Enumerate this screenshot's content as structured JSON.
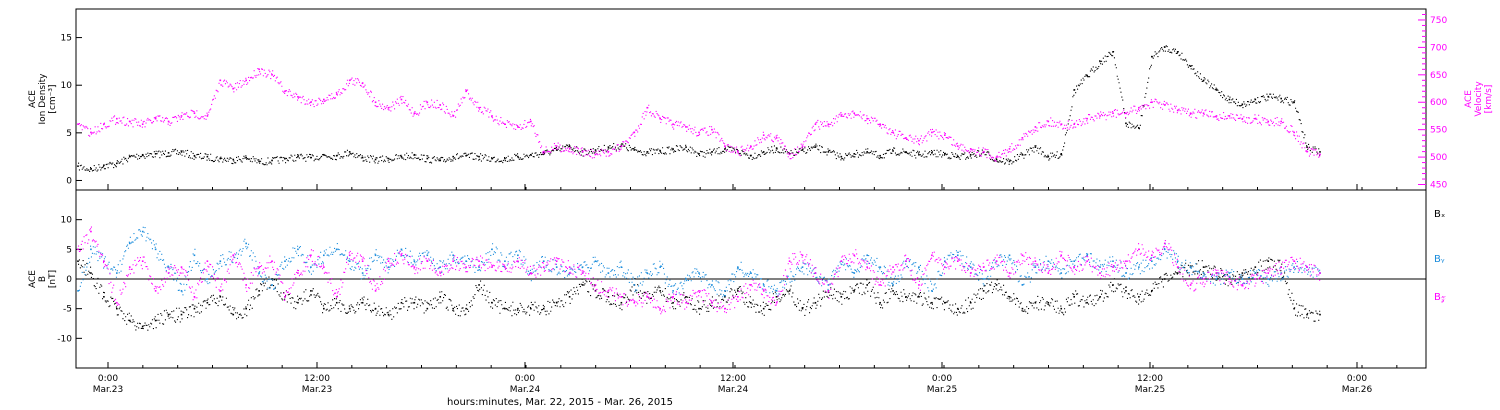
{
  "chart_data": [
    {
      "type": "scatter",
      "panel": "top",
      "left_axis": {
        "label_lines": [
          "ACE",
          "Ion Density",
          "[cm⁻³]"
        ],
        "ylim": [
          -1,
          18
        ],
        "ticks": [
          0,
          5,
          10,
          15
        ]
      },
      "right_axis": {
        "label_lines": [
          "ACE",
          "Velocity",
          "[km/s]"
        ],
        "ylim": [
          440,
          770
        ],
        "ticks": [
          450,
          500,
          550,
          600,
          650,
          700,
          750
        ],
        "color": "#ff00ff"
      },
      "series": [
        {
          "axis": "left",
          "color": "#000000",
          "x": [
            0,
            1,
            2,
            3,
            4,
            5,
            6,
            7,
            8,
            9,
            10,
            11,
            12,
            13,
            14,
            15,
            16,
            17,
            18,
            19,
            20,
            21,
            22,
            23,
            24,
            25,
            26,
            27,
            28,
            29,
            30,
            31,
            32,
            33,
            34,
            35,
            36,
            37,
            38,
            39,
            40,
            41,
            42,
            43,
            44,
            45,
            46,
            47,
            48,
            49,
            50,
            51,
            52,
            53,
            54,
            55,
            56,
            57,
            58,
            59,
            60,
            61,
            62,
            63,
            64,
            65,
            66,
            67,
            68,
            69,
            70,
            71,
            72,
            73,
            74,
            75,
            76,
            77,
            78,
            79,
            80,
            81,
            82,
            83,
            84,
            85,
            86,
            87,
            88,
            89,
            90,
            91,
            92,
            93,
            94,
            95,
            96
          ],
          "y": [
            1.5,
            1.2,
            1.6,
            1.8,
            2.5,
            2.7,
            2.8,
            2.9,
            3.0,
            2.6,
            2.5,
            2.3,
            2.2,
            2.4,
            2.0,
            2.1,
            2.3,
            2.5,
            2.4,
            2.7,
            2.6,
            3.0,
            2.4,
            2.2,
            2.3,
            2.5,
            2.7,
            2.3,
            2.1,
            2.5,
            2.6,
            2.5,
            2.3,
            2.3,
            2.5,
            2.7,
            2.9,
            3.2,
            3.6,
            3.0,
            3.2,
            3.5,
            3.7,
            3.2,
            3.0,
            3.1,
            3.3,
            3.5,
            2.8,
            3.0,
            3.3,
            3.1,
            2.6,
            3.0,
            3.4,
            2.8,
            3.2,
            3.5,
            3.0,
            2.5,
            2.8,
            3.0,
            2.6,
            3.1,
            3.0,
            2.7,
            2.9,
            2.8,
            2.5,
            2.7,
            3.0,
            2.2,
            2.0,
            2.7,
            3.5,
            2.5,
            2.8,
            9.5,
            11.0,
            12.5,
            13.5,
            6.0,
            5.5,
            13.0,
            14.0,
            13.5,
            12.0,
            10.5,
            9.5,
            8.5,
            8.0,
            8.5,
            8.8,
            8.6,
            8.2,
            3.5,
            3.0
          ]
        },
        {
          "axis": "right",
          "color": "#ff00ff",
          "x": [
            0,
            1,
            2,
            3,
            4,
            5,
            6,
            7,
            8,
            9,
            10,
            11,
            12,
            13,
            14,
            15,
            16,
            17,
            18,
            19,
            20,
            21,
            22,
            23,
            24,
            25,
            26,
            27,
            28,
            29,
            30,
            31,
            32,
            33,
            34,
            35,
            36,
            37,
            38,
            39,
            40,
            41,
            42,
            43,
            44,
            45,
            46,
            47,
            48,
            49,
            50,
            51,
            52,
            53,
            54,
            55,
            56,
            57,
            58,
            59,
            60,
            61,
            62,
            63,
            64,
            65,
            66,
            67,
            68,
            69,
            70,
            71,
            72,
            73,
            74,
            75,
            76,
            77,
            78,
            79,
            80,
            81,
            82,
            83,
            84,
            85,
            86,
            87,
            88,
            89,
            90,
            91,
            92,
            93,
            94,
            95,
            96
          ],
          "y": [
            560,
            545,
            560,
            570,
            565,
            560,
            570,
            565,
            575,
            580,
            575,
            640,
            625,
            640,
            660,
            650,
            620,
            610,
            600,
            605,
            615,
            640,
            635,
            600,
            590,
            605,
            580,
            600,
            595,
            575,
            620,
            590,
            575,
            560,
            555,
            565,
            510,
            520,
            515,
            510,
            505,
            510,
            520,
            545,
            590,
            570,
            560,
            555,
            545,
            550,
            520,
            510,
            520,
            540,
            535,
            505,
            520,
            560,
            560,
            575,
            580,
            570,
            560,
            545,
            535,
            530,
            545,
            540,
            520,
            515,
            510,
            500,
            515,
            535,
            555,
            565,
            560,
            560,
            570,
            575,
            580,
            580,
            590,
            600,
            595,
            585,
            580,
            580,
            575,
            575,
            570,
            570,
            565,
            565,
            545,
            510,
            505
          ]
        }
      ]
    },
    {
      "type": "scatter",
      "panel": "bottom",
      "left_axis": {
        "label_lines": [
          "ACE",
          "B",
          "[nT]"
        ],
        "ylim": [
          -15,
          15
        ],
        "ticks": [
          -10,
          -5,
          0,
          5,
          10
        ]
      },
      "legend": [
        {
          "name": "Bₓ",
          "color": "#000000"
        },
        {
          "name": "Bᵧ",
          "color": "#1a8cdc"
        },
        {
          "name": "B𝓏",
          "color": "#ff00ff"
        }
      ],
      "series": [
        {
          "name": "Bₓ",
          "color": "#000000",
          "x": [
            0,
            1,
            2,
            3,
            4,
            5,
            6,
            7,
            8,
            9,
            10,
            11,
            12,
            13,
            14,
            15,
            16,
            17,
            18,
            19,
            20,
            21,
            22,
            23,
            24,
            25,
            26,
            27,
            28,
            29,
            30,
            31,
            32,
            33,
            34,
            35,
            36,
            37,
            38,
            39,
            40,
            41,
            42,
            43,
            44,
            45,
            46,
            47,
            48,
            49,
            50,
            51,
            52,
            53,
            54,
            55,
            56,
            57,
            58,
            59,
            60,
            61,
            62,
            63,
            64,
            65,
            66,
            67,
            68,
            69,
            70,
            71,
            72,
            73,
            74,
            75,
            76,
            77,
            78,
            79,
            80,
            81,
            82,
            83,
            84,
            85,
            86,
            87,
            88,
            89,
            90,
            91,
            92,
            93,
            94,
            95,
            96
          ],
          "y": [
            3,
            1,
            -3,
            -5,
            -7,
            -8,
            -7,
            -6,
            -6,
            -5,
            -4,
            -3,
            -6,
            -5,
            -2,
            0,
            -3,
            -4,
            -2,
            -5,
            -4,
            -5,
            -4,
            -5,
            -6,
            -4,
            -4,
            -5,
            -3,
            -5,
            -5,
            -1,
            -4,
            -5,
            -5,
            -5,
            -5,
            -4,
            -3,
            -1,
            -2,
            -3,
            -4,
            -1,
            -3,
            -2,
            -4,
            -3,
            -5,
            -4,
            -3,
            -2,
            -4,
            -5,
            -3,
            -2,
            -5,
            -4,
            -2,
            -3,
            -2,
            -1,
            -4,
            -2,
            -3,
            -3,
            -4,
            -4,
            -5,
            -4,
            -2,
            -1,
            -3,
            -5,
            -4,
            -4,
            -5,
            -3,
            -4,
            -3,
            -1,
            -2,
            -3,
            -2,
            0,
            1,
            2,
            2,
            1,
            0,
            1,
            2,
            3,
            2,
            -5,
            -6,
            -6
          ]
        },
        {
          "name": "Bᵧ",
          "color": "#1a8cdc",
          "x": [
            0,
            1,
            2,
            3,
            4,
            5,
            6,
            7,
            8,
            9,
            10,
            11,
            12,
            13,
            14,
            15,
            16,
            17,
            18,
            19,
            20,
            21,
            22,
            23,
            24,
            25,
            26,
            27,
            28,
            29,
            30,
            31,
            32,
            33,
            34,
            35,
            36,
            37,
            38,
            39,
            40,
            41,
            42,
            43,
            44,
            45,
            46,
            47,
            48,
            49,
            50,
            51,
            52,
            53,
            54,
            55,
            56,
            57,
            58,
            59,
            60,
            61,
            62,
            63,
            64,
            65,
            66,
            67,
            68,
            69,
            70,
            71,
            72,
            73,
            74,
            75,
            76,
            77,
            78,
            79,
            80,
            81,
            82,
            83,
            84,
            85,
            86,
            87,
            88,
            89,
            90,
            91,
            92,
            93,
            94,
            95,
            96
          ],
          "y": [
            -2,
            5,
            3,
            1,
            6,
            8,
            5,
            2,
            -2,
            4,
            0,
            3,
            4,
            6,
            1,
            -1,
            3,
            5,
            2,
            4,
            5,
            3,
            1,
            4,
            2,
            5,
            3,
            4,
            2,
            4,
            3,
            2,
            5,
            3,
            4,
            1,
            3,
            2,
            1,
            2,
            3,
            1,
            2,
            -1,
            1,
            2,
            -2,
            0,
            1,
            -1,
            -2,
            2,
            1,
            -1,
            -2,
            0,
            2,
            1,
            -1,
            3,
            1,
            4,
            2,
            -1,
            3,
            2,
            -2,
            3,
            4,
            2,
            0,
            3,
            4,
            -1,
            2,
            3,
            1,
            3,
            4,
            2,
            3,
            1,
            2,
            3,
            5,
            3,
            2,
            1,
            0,
            1,
            0,
            1,
            0,
            1,
            2,
            2,
            1
          ]
        },
        {
          "name": "B𝓏",
          "color": "#ff00ff",
          "x": [
            0,
            1,
            2,
            3,
            4,
            5,
            6,
            7,
            8,
            9,
            10,
            11,
            12,
            13,
            14,
            15,
            16,
            17,
            18,
            19,
            20,
            21,
            22,
            23,
            24,
            25,
            26,
            27,
            28,
            29,
            30,
            31,
            32,
            33,
            34,
            35,
            36,
            37,
            38,
            39,
            40,
            41,
            42,
            43,
            44,
            45,
            46,
            47,
            48,
            49,
            50,
            51,
            52,
            53,
            54,
            55,
            56,
            57,
            58,
            59,
            60,
            61,
            62,
            63,
            64,
            65,
            66,
            67,
            68,
            69,
            70,
            71,
            72,
            73,
            74,
            75,
            76,
            77,
            78,
            79,
            80,
            81,
            82,
            83,
            84,
            85,
            86,
            87,
            88,
            89,
            90,
            91,
            92,
            93,
            94,
            95,
            96
          ],
          "y": [
            5,
            8,
            3,
            -4,
            2,
            3,
            -2,
            1,
            2,
            -3,
            3,
            -2,
            4,
            -1,
            2,
            3,
            -3,
            1,
            4,
            2,
            -3,
            4,
            3,
            -2,
            3,
            4,
            2,
            3,
            1,
            3,
            2,
            3,
            2,
            2,
            3,
            1,
            2,
            3,
            2,
            1,
            -1,
            -2,
            -3,
            -4,
            -3,
            -5,
            -3,
            -4,
            -2,
            -4,
            -5,
            -3,
            -1,
            -2,
            -4,
            3,
            4,
            1,
            -2,
            3,
            4,
            2,
            -1,
            2,
            3,
            -1,
            4,
            2,
            3,
            1,
            2,
            3,
            1,
            4,
            3,
            1,
            4,
            2,
            3,
            1,
            2,
            3,
            5,
            4,
            6,
            2,
            -1,
            0,
            1,
            0,
            -1,
            0,
            1,
            2,
            3,
            2,
            1
          ]
        }
      ]
    }
  ],
  "x_axis": {
    "title": "hours:minutes, Mar. 22, 2015 - Mar. 26, 2015",
    "ticks": [
      {
        "time": "0:00",
        "date": "Mar.23"
      },
      {
        "time": "12:00",
        "date": "Mar.23"
      },
      {
        "time": "0:00",
        "date": "Mar.24"
      },
      {
        "time": "12:00",
        "date": "Mar.24"
      },
      {
        "time": "0:00",
        "date": "Mar.25"
      },
      {
        "time": "12:00",
        "date": "Mar.25"
      },
      {
        "time": "0:00",
        "date": "Mar.26"
      }
    ]
  }
}
